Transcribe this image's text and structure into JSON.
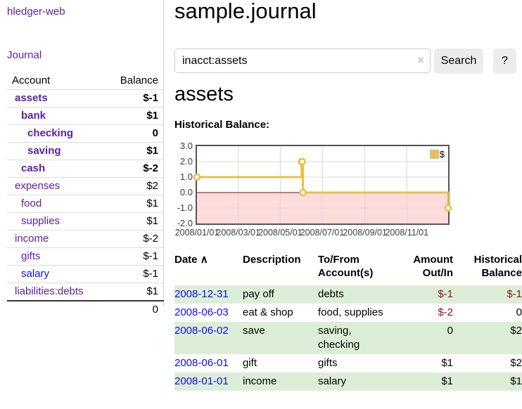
{
  "app": {
    "title": "hledger-web"
  },
  "sidebar": {
    "journal_link": "Journal",
    "accounts_table": {
      "headers": {
        "account": "Account",
        "balance": "Balance"
      },
      "rows": [
        {
          "name": "assets",
          "indent": 0,
          "bold": true,
          "balance": "$-1",
          "balance_style": "neg-strong"
        },
        {
          "name": "bank",
          "indent": 1,
          "bold": true,
          "balance": "$1",
          "balance_style": "plain"
        },
        {
          "name": "checking",
          "indent": 2,
          "bold": true,
          "balance": "0",
          "balance_style": "plain"
        },
        {
          "name": "saving",
          "indent": 2,
          "bold": true,
          "balance": "$1",
          "balance_style": "plain"
        },
        {
          "name": "cash",
          "indent": 1,
          "bold": true,
          "balance": "$-2",
          "balance_style": "neg-strong"
        },
        {
          "name": "expenses",
          "indent": 0,
          "bold": false,
          "balance": "$2",
          "balance_style": "plain"
        },
        {
          "name": "food",
          "indent": 1,
          "bold": false,
          "balance": "$1",
          "balance_style": "plain"
        },
        {
          "name": "supplies",
          "indent": 1,
          "bold": false,
          "balance": "$1",
          "balance_style": "plain"
        },
        {
          "name": "income",
          "indent": 0,
          "bold": false,
          "balance": "$-2",
          "balance_style": "neg-soft"
        },
        {
          "name": "gifts",
          "indent": 1,
          "bold": false,
          "balance": "$-1",
          "balance_style": "neg-soft"
        },
        {
          "name": "salary",
          "indent": 1,
          "bold": false,
          "balance": "$-1",
          "balance_style": "neg-soft",
          "link_color": "blue"
        },
        {
          "name": "liabilities:debts",
          "indent": 0,
          "bold": false,
          "balance": "$1",
          "balance_style": "plain"
        }
      ],
      "total": "0"
    }
  },
  "header": {
    "title": "sample.journal"
  },
  "search": {
    "value": "inacct:assets",
    "clear_icon": "×",
    "button_label": "Search",
    "help_label": "?"
  },
  "account_page": {
    "heading": "assets",
    "chart_title": "Historical Balance:"
  },
  "chart_data": {
    "type": "line",
    "step": true,
    "title": "Historical Balance:",
    "series": [
      {
        "name": "$",
        "color": "#e8c04a",
        "points": [
          [
            "2008-01-01",
            1
          ],
          [
            "2008-06-01",
            2
          ],
          [
            "2008-06-02",
            2
          ],
          [
            "2008-06-03",
            0
          ],
          [
            "2008-12-31",
            -1
          ]
        ]
      }
    ],
    "x_range": [
      "2008-01-01",
      "2008-12-31"
    ],
    "x_ticks": [
      "2008/01/01",
      "2008/03/01",
      "2008/05/01",
      "2008/07/01",
      "2008/09/01",
      "2008/11/01"
    ],
    "y_ticks": [
      3.0,
      2.0,
      1.0,
      0.0,
      -1.0,
      -2.0
    ],
    "ylim": [
      -2,
      3
    ],
    "grid": true,
    "legend": {
      "label": "$",
      "position": "top-right"
    },
    "negative_region_color": "#ffdcdc",
    "zero_line_color": "#8b0000",
    "grid_color": "#d8d8d8",
    "border_color": "#545454"
  },
  "register": {
    "headers": {
      "date": "Date",
      "sort_icon": "∧",
      "description": "Description",
      "tofrom": "To/From Account(s)",
      "amount": "Amount Out/In",
      "balance": "Historical Balance"
    },
    "rows": [
      {
        "date": "2008-12-31",
        "description": "pay off",
        "accounts": "debts",
        "amount": "$-1",
        "amount_style": "neg-strong",
        "balance": "$-1",
        "balance_style": "neg-strong",
        "shaded": true
      },
      {
        "date": "2008-06-03",
        "description": "eat & shop",
        "accounts": "food, supplies",
        "amount": "$-2",
        "amount_style": "neg-strong",
        "balance": "0",
        "balance_style": "plain",
        "shaded": false
      },
      {
        "date": "2008-06-02",
        "description": "save",
        "accounts": "saving, checking",
        "amount": "0",
        "amount_style": "plain",
        "balance": "$2",
        "balance_style": "plain",
        "shaded": true
      },
      {
        "date": "2008-06-01",
        "description": "gift",
        "accounts": "gifts",
        "amount": "$1",
        "amount_style": "plain",
        "balance": "$2",
        "balance_style": "plain",
        "shaded": false
      },
      {
        "date": "2008-01-01",
        "description": "income",
        "accounts": "salary",
        "amount": "$1",
        "amount_style": "plain",
        "balance": "$1",
        "balance_style": "plain",
        "shaded": true
      }
    ]
  },
  "colors": {
    "link_purple": "#5b21a0",
    "link_blue": "#0d0dee",
    "negative_strong": "#8b1515",
    "negative_soft": "#b2696e",
    "row_shade_green": "#ddeed8",
    "series_gold": "#e8c04a",
    "negative_region_pink": "#ffdcdc",
    "zero_line_red": "#8b0000",
    "divider_gray": "#cccccc"
  }
}
